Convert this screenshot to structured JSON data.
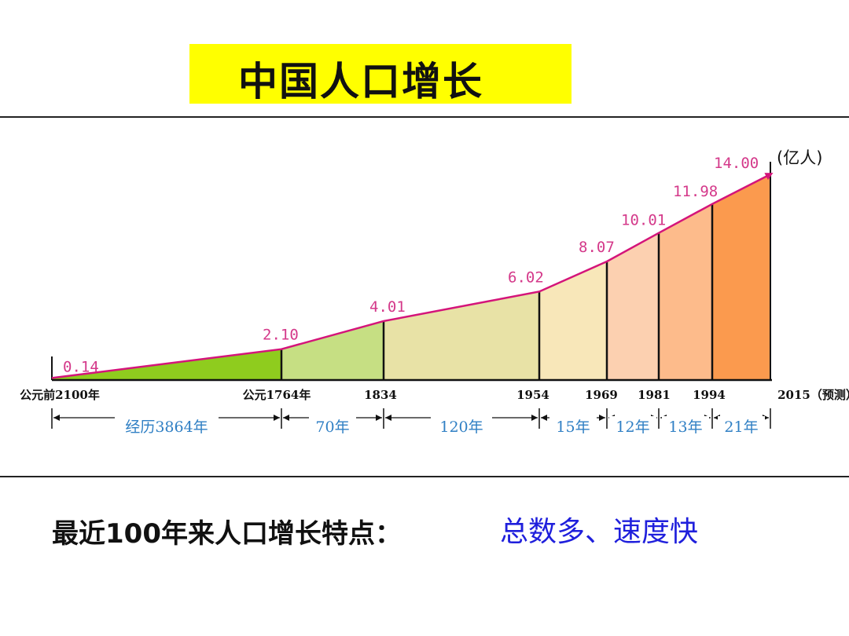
{
  "title": "中国人口增长",
  "summary": {
    "label": "最近100年来人口增长特点：",
    "value": "总数多、速度快"
  },
  "chart_data": {
    "type": "area",
    "unit_label": "(亿人)",
    "x_labels": [
      "公元前2100年",
      "公元1764年",
      "1834",
      "1954",
      "1969",
      "1981",
      "1994",
      "2015（预测）"
    ],
    "values": [
      0.14,
      2.1,
      4.01,
      6.02,
      8.07,
      10.01,
      11.98,
      14.0
    ],
    "value_labels": [
      "0.14",
      "2.10",
      "4.01",
      "6.02",
      "8.07",
      "10.01",
      "11.98",
      "14.00"
    ],
    "intervals": [
      "经历3864年",
      "70年",
      "120年",
      "15年",
      "12年",
      "13年",
      "21年"
    ],
    "ylim": [
      0,
      14.5
    ],
    "colors": {
      "segments": [
        "#8fcc1e",
        "#c6df83",
        "#e8e2a6",
        "#f8e7b9",
        "#fcd0b0",
        "#fdbb8b",
        "#fb9a4e"
      ],
      "line": "#d4147a",
      "value_text": "#d4398a",
      "interval_text": "#2f7fc4",
      "axis": "#111111"
    }
  }
}
